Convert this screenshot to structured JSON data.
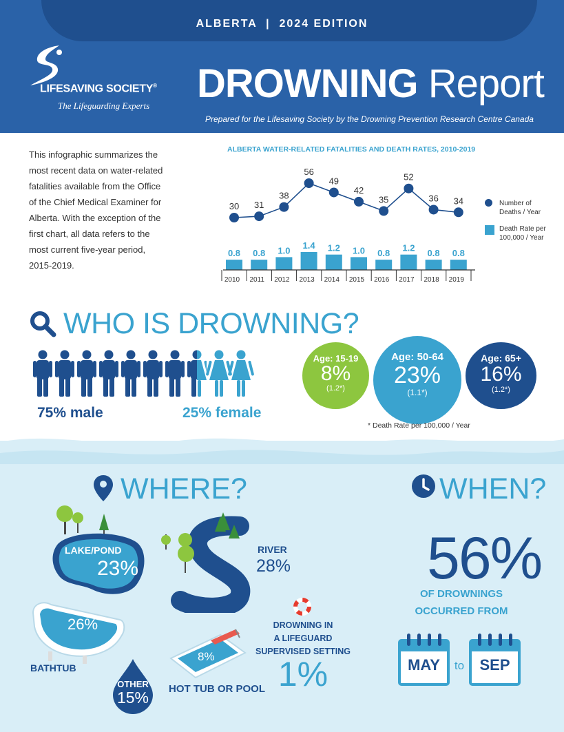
{
  "header": {
    "edition": "ALBERTA  |  2024 EDITION",
    "org_name": "LIFESAVING SOCIETY",
    "org_reg": "®",
    "org_tagline": "The Lifeguarding Experts",
    "title_bold": "DROWNING",
    "title_light": "Report",
    "prepared_by": "Prepared for the Lifesaving Society by the Drowning Prevention Research Centre Canada"
  },
  "intro": "This infographic summarizes the most recent data on water-related fatalities available from the Office of the Chief Medical Examiner for Alberta. With the exception of the first chart, all data refers to the most current five-year period, 2015-2019.",
  "chart_data": {
    "type": "bar",
    "title": "ALBERTA WATER-RELATED FATALITIES AND DEATH RATES, 2010-2019",
    "categories": [
      "2010",
      "2011",
      "2012",
      "2013",
      "2014",
      "2015",
      "2016",
      "2017",
      "2018",
      "2019"
    ],
    "series": [
      {
        "name": "Number of Deaths / Year",
        "type": "line",
        "values": [
          30,
          31,
          38,
          56,
          49,
          42,
          35,
          52,
          36,
          34
        ],
        "color": "#1f4f8e"
      },
      {
        "name": "Death Rate per 100,000 / Year",
        "type": "bar",
        "values": [
          0.8,
          0.8,
          1.0,
          1.4,
          1.2,
          1.0,
          0.8,
          1.2,
          0.8,
          0.8
        ],
        "labels": [
          "0.8",
          "0.8",
          "1.0",
          "1.4",
          "1.2",
          "1.0",
          "0.8",
          "1.2",
          "0.8",
          "0.8"
        ],
        "color": "#3aa3cf"
      }
    ],
    "legend": {
      "deaths_1": "Number of",
      "deaths_2": "Deaths / Year",
      "rate_1": "Death Rate per",
      "rate_2": "100,000 / Year"
    }
  },
  "who": {
    "title": "WHO IS DROWNING?",
    "male_pct": "75% male",
    "female_pct": "25% female",
    "ages": [
      {
        "label": "Age: 15-19",
        "pct": "8%",
        "rate": "(1.2*)",
        "color": "#8dc63f"
      },
      {
        "label": "Age: 50-64",
        "pct": "23%",
        "rate": "(1.1*)",
        "color": "#3aa3cf"
      },
      {
        "label": "Age: 65+",
        "pct": "16%",
        "rate": "(1.2*)",
        "color": "#1f4f8e"
      }
    ],
    "footnote": "* Death Rate per 100,000 / Year"
  },
  "where": {
    "title": "WHERE?",
    "lake_label": "LAKE/POND",
    "lake_pct": "23%",
    "river_label": "RIVER",
    "river_pct": "28%",
    "bathtub_label": "BATHTUB",
    "bathtub_pct": "26%",
    "other_label": "OTHER",
    "other_pct": "15%",
    "pool_label": "HOT TUB OR POOL",
    "pool_pct": "8%",
    "lifeguard_1": "DROWNING IN",
    "lifeguard_2": "A LIFEGUARD",
    "lifeguard_3": "SUPERVISED SETTING",
    "lifeguard_pct": "1%"
  },
  "when": {
    "title": "WHEN?",
    "pct": "56%",
    "text_1": "OF DROWNINGS",
    "text_2": "OCCURRED FROM",
    "from": "MAY",
    "to": "to",
    "until": "SEP"
  },
  "colors": {
    "navy": "#1f4f8e",
    "blue": "#2a62a8",
    "sky": "#3aa3cf",
    "green": "#8dc63f",
    "pale": "#d9eef7"
  }
}
